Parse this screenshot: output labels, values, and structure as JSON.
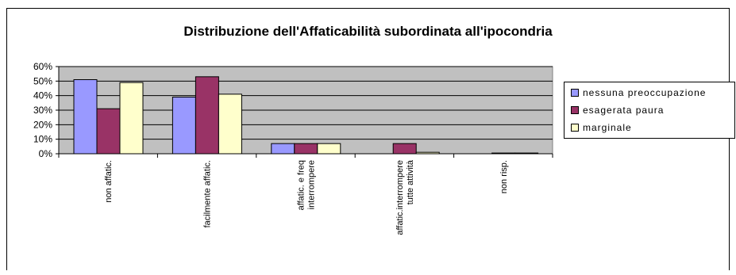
{
  "chart_data": {
    "type": "bar",
    "title": "Distribuzione dell'Affaticabilità subordinata all'ipocondria",
    "xlabel": "",
    "ylabel": "",
    "ylim": [
      0,
      60
    ],
    "yticks": [
      "0%",
      "10%",
      "20%",
      "30%",
      "40%",
      "50%",
      "60%"
    ],
    "grid": true,
    "legend_position": "right",
    "plot_background": "#c0c0c0",
    "categories": [
      [
        "non affatic."
      ],
      [
        "facilmente affatic."
      ],
      [
        "affatic. e freq",
        "interrompere"
      ],
      [
        "affatic.interrompere",
        "tutte attività"
      ],
      [
        "non risp."
      ]
    ],
    "series": [
      {
        "name": "nessuna preoccupazione",
        "color": "#9999ff",
        "values": [
          51,
          39,
          7,
          0,
          0
        ]
      },
      {
        "name": "esagerata paura",
        "color": "#993366",
        "values": [
          31,
          53,
          7,
          7,
          0.5
        ]
      },
      {
        "name": "marginale",
        "color": "#ffffcc",
        "values": [
          49,
          41,
          7,
          1,
          0.5
        ]
      }
    ]
  }
}
